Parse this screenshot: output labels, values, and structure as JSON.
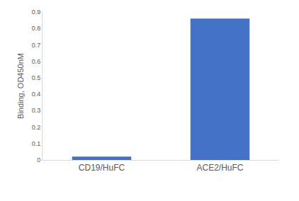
{
  "chart_data": {
    "type": "bar",
    "y_label": "Binding, OD450nM",
    "categories": [
      "CD19/HuFC",
      "ACE2/HuFC"
    ],
    "values": [
      0.02,
      0.86
    ],
    "color": "#4472c4",
    "ylim": [
      0,
      0.9
    ],
    "yticks": [
      0,
      0.1,
      0.2,
      0.3,
      0.4,
      0.5,
      0.6,
      0.7,
      0.8,
      0.9
    ],
    "grid": false
  }
}
